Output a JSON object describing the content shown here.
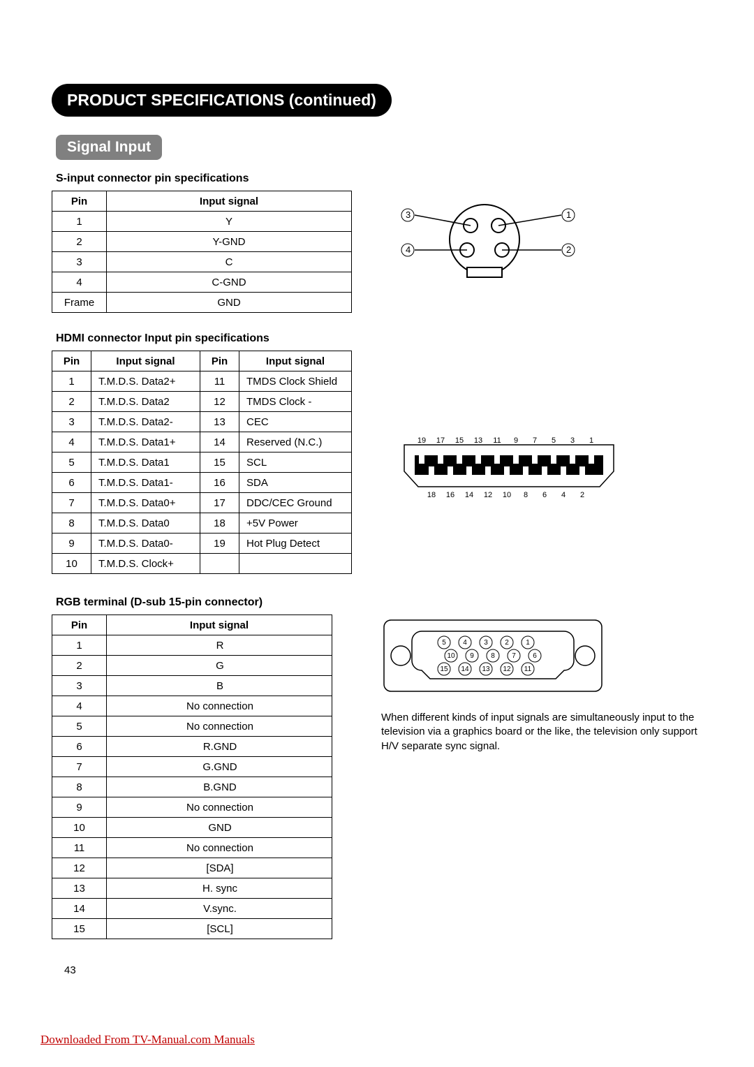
{
  "header": {
    "title": "PRODUCT SPECIFICATIONS (continued)",
    "subtitle": "Signal Input"
  },
  "sinput": {
    "heading": "S-input connector pin specifications",
    "columns": [
      "Pin",
      "Input signal"
    ],
    "rows": [
      [
        "1",
        "Y"
      ],
      [
        "2",
        "Y-GND"
      ],
      [
        "3",
        "C"
      ],
      [
        "4",
        "C-GND"
      ],
      [
        "Frame",
        "GND"
      ]
    ],
    "diagram": {
      "callouts": [
        "1",
        "2",
        "3",
        "4"
      ]
    }
  },
  "hdmi": {
    "heading": "HDMI connector Input pin specifications",
    "columns": [
      "Pin",
      "Input signal",
      "Pin",
      "Input signal"
    ],
    "rows": [
      [
        "1",
        "T.M.D.S. Data2+",
        "11",
        "TMDS Clock Shield"
      ],
      [
        "2",
        "T.M.D.S. Data2",
        "12",
        "TMDS Clock -"
      ],
      [
        "3",
        "T.M.D.S. Data2-",
        "13",
        "CEC"
      ],
      [
        "4",
        "T.M.D.S. Data1+",
        "14",
        "Reserved (N.C.)"
      ],
      [
        "5",
        "T.M.D.S. Data1",
        "15",
        "SCL"
      ],
      [
        "6",
        "T.M.D.S. Data1-",
        "16",
        "SDA"
      ],
      [
        "7",
        "T.M.D.S. Data0+",
        "17",
        "DDC/CEC Ground"
      ],
      [
        "8",
        "T.M.D.S. Data0",
        "18",
        "+5V Power"
      ],
      [
        "9",
        "T.M.D.S. Data0-",
        "19",
        "Hot Plug Detect"
      ],
      [
        "10",
        "T.M.D.S. Clock+",
        "",
        ""
      ]
    ],
    "diagram": {
      "top_labels": [
        "19",
        "17",
        "15",
        "13",
        "11",
        "9",
        "7",
        "5",
        "3",
        "1"
      ],
      "bottom_labels": [
        "18",
        "16",
        "14",
        "12",
        "10",
        "8",
        "6",
        "4",
        "2"
      ]
    }
  },
  "rgb": {
    "heading": "RGB terminal (D-sub 15-pin connector)",
    "columns": [
      "Pin",
      "Input signal"
    ],
    "rows": [
      [
        "1",
        "R"
      ],
      [
        "2",
        "G"
      ],
      [
        "3",
        "B"
      ],
      [
        "4",
        "No connection"
      ],
      [
        "5",
        "No connection"
      ],
      [
        "6",
        "R.GND"
      ],
      [
        "7",
        "G.GND"
      ],
      [
        "8",
        "B.GND"
      ],
      [
        "9",
        "No connection"
      ],
      [
        "10",
        "GND"
      ],
      [
        "11",
        "No connection"
      ],
      [
        "12",
        "[SDA]"
      ],
      [
        "13",
        "H. sync"
      ],
      [
        "14",
        "V.sync."
      ],
      [
        "15",
        "[SCL]"
      ]
    ],
    "diagram": {
      "row1": [
        "5",
        "4",
        "3",
        "2",
        "1"
      ],
      "row2": [
        "10",
        "9",
        "8",
        "7",
        "6"
      ],
      "row3": [
        "15",
        "14",
        "13",
        "12",
        "11"
      ]
    },
    "note": "When different kinds of input signals are simultaneously input to the television via a graphics board or the like, the television only support H/V separate sync signal."
  },
  "pageNumber": "43",
  "footer": "Downloaded From TV-Manual.com Manuals",
  "style": {
    "colors": {
      "black": "#000000",
      "gray_pill": "#808080",
      "link": "#c00000",
      "white": "#ffffff"
    },
    "font_sizes": {
      "body": 15,
      "subheading": 16,
      "pill_lg": 23,
      "pill_sm": 21
    }
  }
}
